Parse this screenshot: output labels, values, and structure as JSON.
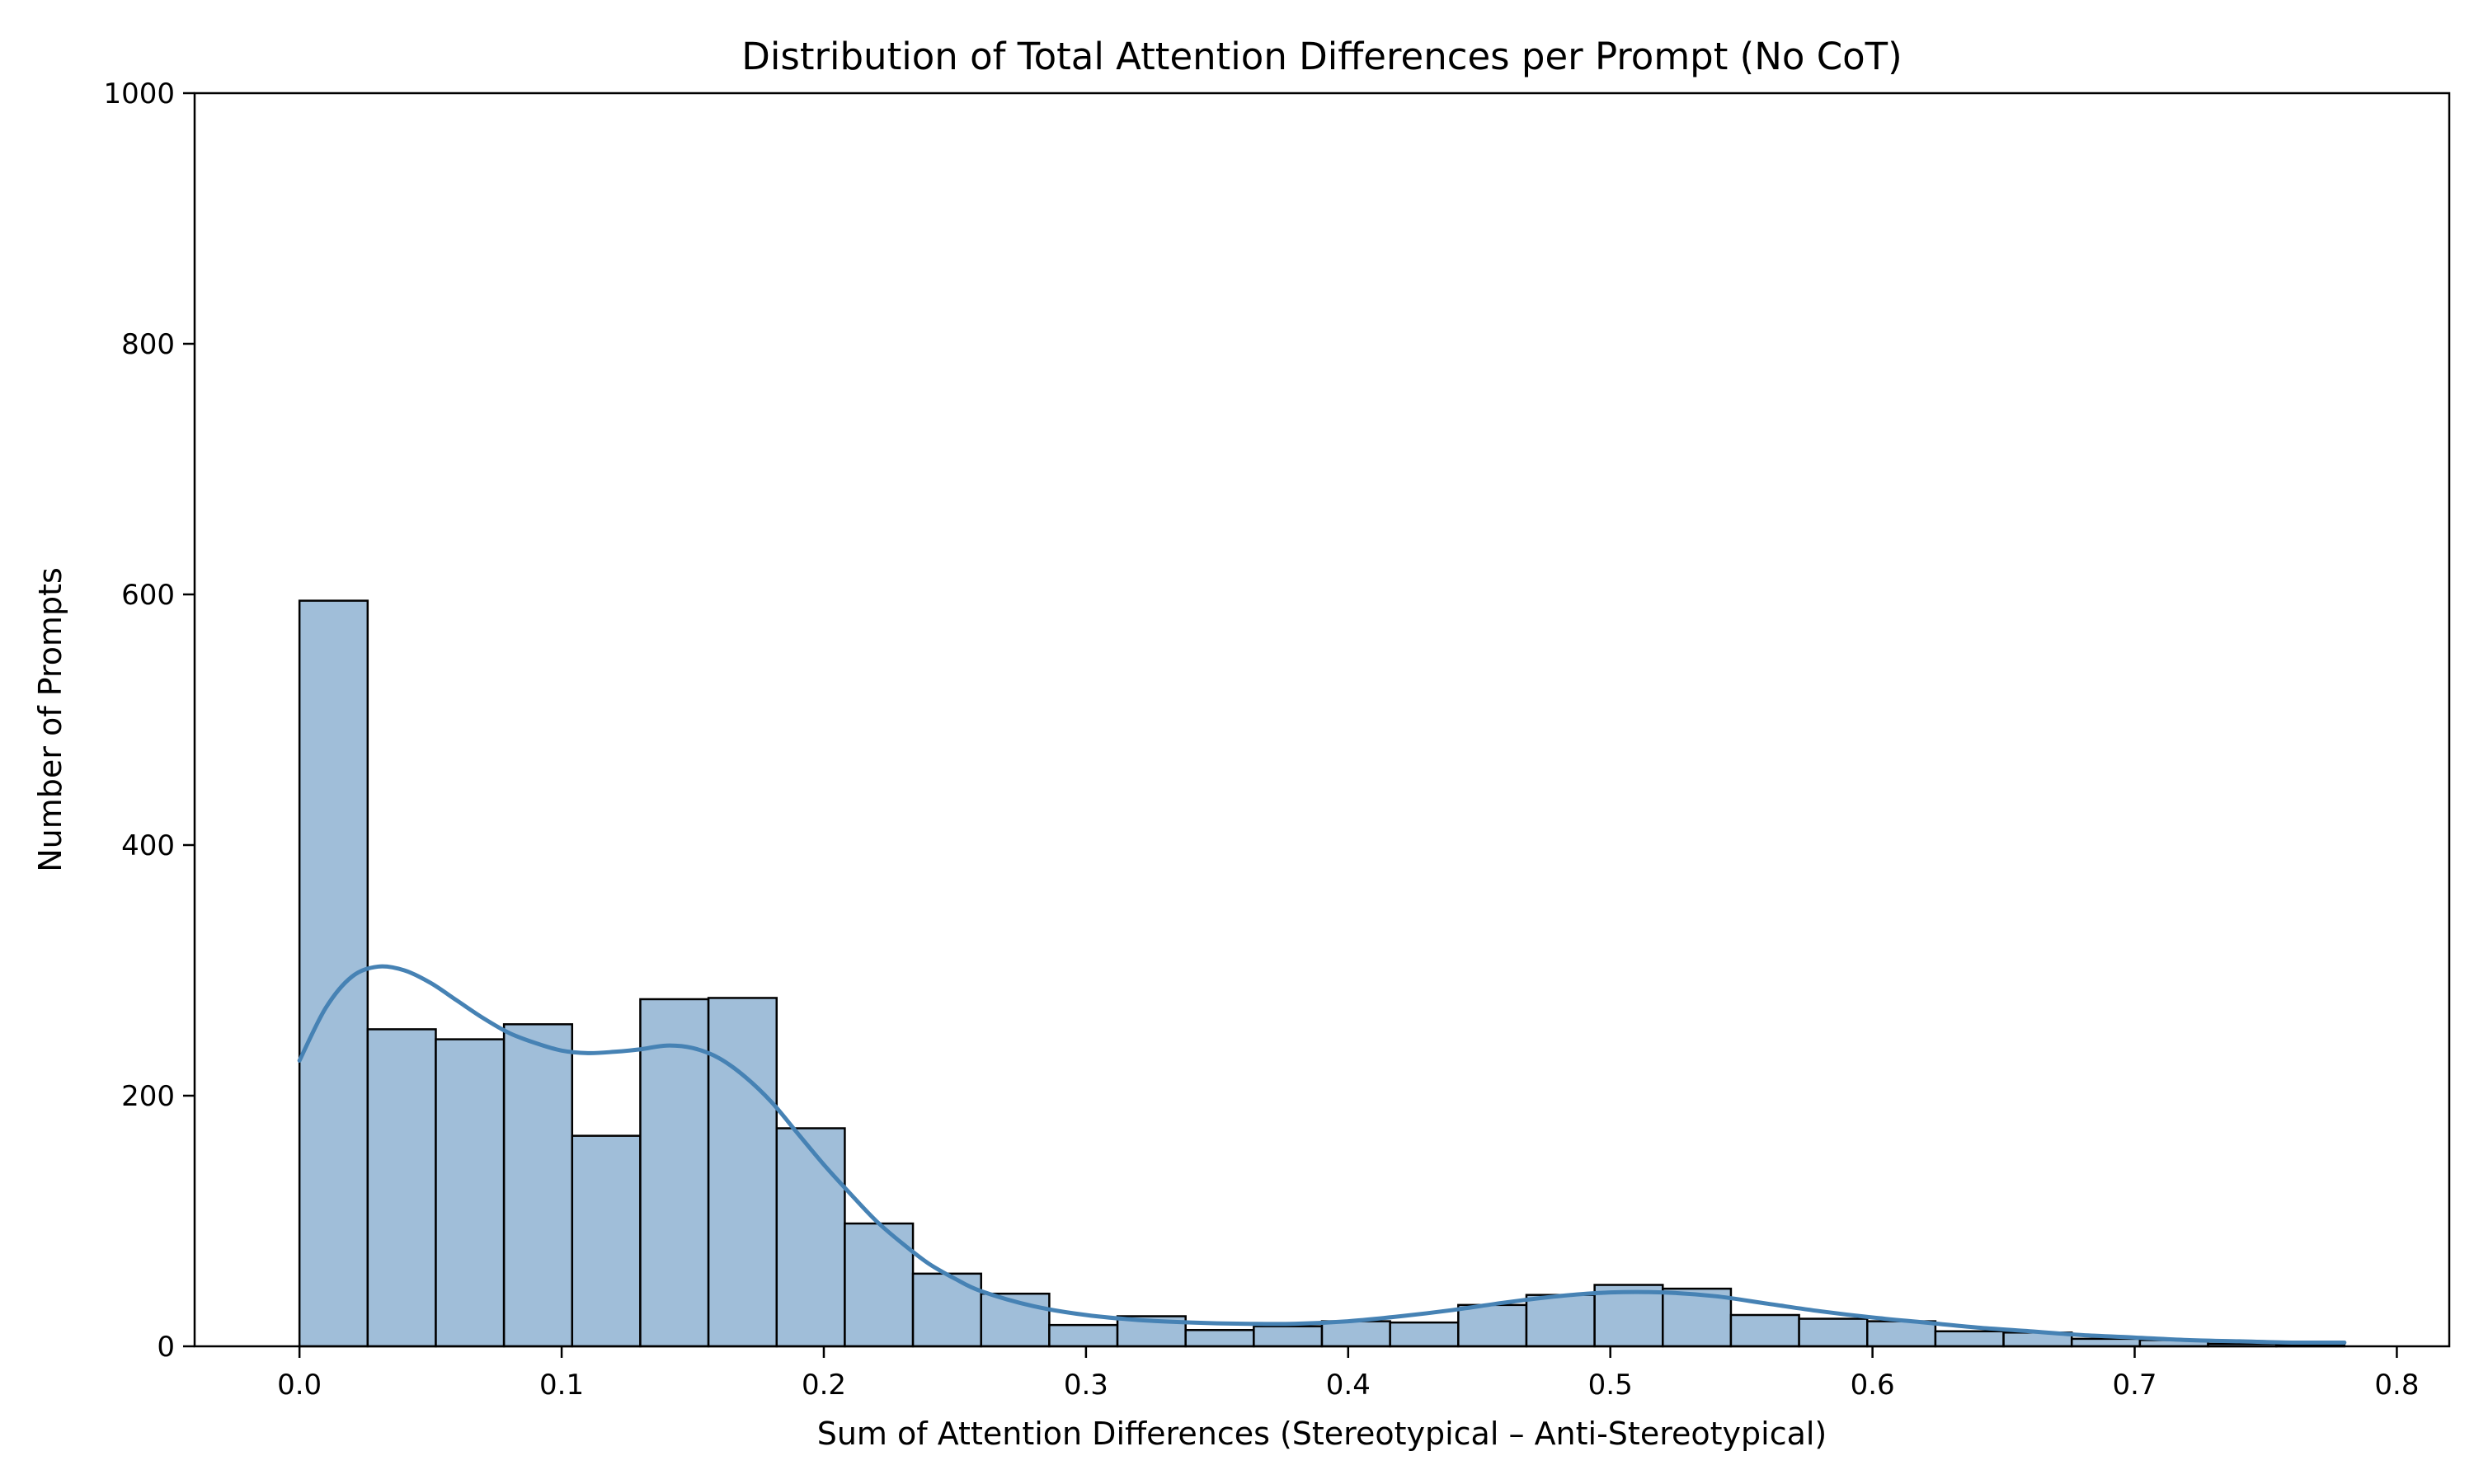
{
  "chart_data": {
    "type": "bar",
    "title": "Distribution of Total Attention Differences per Prompt (No CoT)",
    "xlabel": "Sum of Attention Differences (Stereotypical – Anti-Stereotypical)",
    "ylabel": "Number of Prompts",
    "xlim": [
      -0.04,
      0.82
    ],
    "ylim": [
      0,
      1000
    ],
    "xticks": [
      0.0,
      0.1,
      0.2,
      0.3,
      0.4,
      0.5,
      0.6,
      0.7,
      0.8
    ],
    "xtick_labels": [
      "0.0",
      "0.1",
      "0.2",
      "0.3",
      "0.4",
      "0.5",
      "0.6",
      "0.7",
      "0.8"
    ],
    "yticks": [
      0,
      200,
      400,
      600,
      800,
      1000
    ],
    "ytick_labels": [
      "0",
      "200",
      "400",
      "600",
      "800",
      "1000"
    ],
    "grid": false,
    "bins": {
      "start": 0.0,
      "width": 0.026,
      "counts": [
        595,
        253,
        245,
        257,
        168,
        277,
        278,
        174,
        98,
        58,
        42,
        17,
        24,
        13,
        16,
        20,
        19,
        33,
        41,
        49,
        46,
        25,
        22,
        20,
        12,
        11,
        6,
        5,
        2,
        1
      ]
    },
    "kde": {
      "x": [
        0.0,
        0.01,
        0.02,
        0.03,
        0.04,
        0.05,
        0.06,
        0.07,
        0.08,
        0.09,
        0.1,
        0.11,
        0.12,
        0.13,
        0.14,
        0.15,
        0.16,
        0.17,
        0.18,
        0.19,
        0.2,
        0.21,
        0.22,
        0.23,
        0.24,
        0.25,
        0.26,
        0.28,
        0.3,
        0.32,
        0.34,
        0.36,
        0.38,
        0.4,
        0.42,
        0.44,
        0.46,
        0.48,
        0.5,
        0.52,
        0.54,
        0.56,
        0.58,
        0.6,
        0.62,
        0.64,
        0.66,
        0.68,
        0.7,
        0.72,
        0.74,
        0.76,
        0.78
      ],
      "y": [
        228,
        270,
        295,
        303,
        300,
        290,
        276,
        262,
        250,
        242,
        236,
        234,
        235,
        237,
        240,
        238,
        230,
        215,
        195,
        170,
        145,
        122,
        100,
        82,
        66,
        54,
        44,
        32,
        25,
        21,
        19,
        18,
        18,
        20,
        24,
        29,
        35,
        40,
        43,
        43,
        40,
        34,
        28,
        23,
        19,
        15,
        12,
        9,
        7,
        5,
        4,
        3,
        3
      ]
    },
    "colors": {
      "bar_fill": "#a0bed9",
      "bar_edge": "#000000",
      "kde_line": "#4682b4"
    }
  }
}
